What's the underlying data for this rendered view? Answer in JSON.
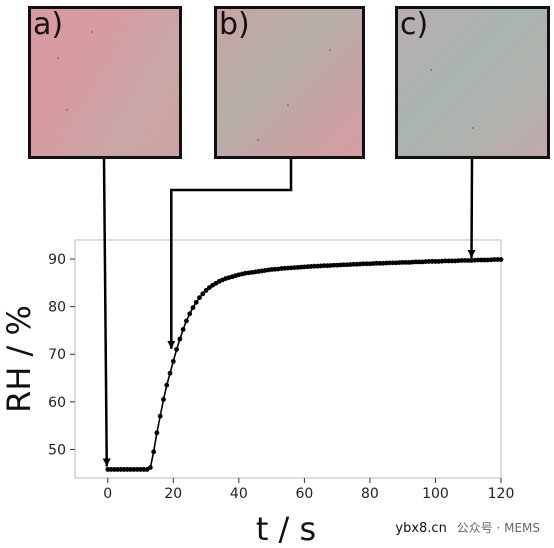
{
  "panels": [
    {
      "label": "a)"
    },
    {
      "label": "b)"
    },
    {
      "label": "c)"
    }
  ],
  "chart_data": {
    "type": "line",
    "title": "",
    "xlabel": "t / s",
    "ylabel": "RH / %",
    "xlim": [
      -10,
      120
    ],
    "ylim": [
      44,
      94
    ],
    "xticks": [
      0,
      20,
      40,
      60,
      80,
      100,
      120
    ],
    "yticks": [
      50,
      60,
      70,
      80,
      90
    ],
    "grid": false,
    "series": [
      {
        "color": "#000000",
        "x": [
          0,
          1,
          2,
          3,
          4,
          5,
          6,
          7,
          8,
          9,
          10,
          11,
          12,
          13,
          14,
          15,
          16,
          17,
          18,
          19,
          20,
          21,
          22,
          23,
          24,
          25,
          26,
          27,
          28,
          29,
          30,
          31,
          32,
          33,
          34,
          35,
          36,
          37,
          38,
          39,
          40,
          41,
          42,
          43,
          44,
          45,
          46,
          47,
          48,
          49,
          50,
          51,
          52,
          53,
          54,
          55,
          56,
          57,
          58,
          59,
          60,
          61,
          62,
          63,
          64,
          65,
          66,
          67,
          68,
          69,
          70,
          71,
          72,
          73,
          74,
          75,
          76,
          77,
          78,
          79,
          80,
          81,
          82,
          83,
          84,
          85,
          86,
          87,
          88,
          89,
          90,
          91,
          92,
          93,
          94,
          95,
          96,
          97,
          98,
          99,
          100,
          101,
          102,
          103,
          104,
          105,
          106,
          107,
          108,
          109,
          110,
          111,
          112,
          113,
          114,
          115,
          116,
          117,
          118,
          119,
          120
        ],
        "y": [
          45.8,
          45.8,
          45.8,
          45.8,
          45.8,
          45.8,
          45.8,
          45.8,
          45.8,
          45.8,
          45.8,
          45.8,
          45.8,
          46.2,
          49.5,
          53.5,
          57.0,
          60.5,
          63.5,
          66.0,
          68.5,
          71.0,
          73.2,
          75.2,
          77.0,
          78.5,
          79.8,
          80.9,
          81.9,
          82.7,
          83.4,
          84.0,
          84.5,
          84.9,
          85.3,
          85.6,
          85.9,
          86.1,
          86.3,
          86.5,
          86.7,
          86.85,
          87.0,
          87.1,
          87.2,
          87.3,
          87.4,
          87.5,
          87.6,
          87.7,
          87.8,
          87.85,
          87.9,
          88.0,
          88.05,
          88.1,
          88.15,
          88.2,
          88.25,
          88.3,
          88.35,
          88.4,
          88.45,
          88.5,
          88.5,
          88.55,
          88.6,
          88.6,
          88.65,
          88.7,
          88.7,
          88.75,
          88.8,
          88.8,
          88.85,
          88.9,
          88.9,
          88.95,
          89.0,
          89.0,
          89.0,
          89.05,
          89.1,
          89.1,
          89.1,
          89.15,
          89.2,
          89.2,
          89.2,
          89.25,
          89.3,
          89.3,
          89.3,
          89.35,
          89.4,
          89.4,
          89.4,
          89.45,
          89.5,
          89.5,
          89.5,
          89.5,
          89.55,
          89.6,
          89.6,
          89.6,
          89.6,
          89.65,
          89.7,
          89.7,
          89.7,
          89.7,
          89.75,
          89.8,
          89.8,
          89.8,
          89.8,
          89.85,
          89.9,
          89.9,
          89.9
        ]
      }
    ],
    "arrows": [
      {
        "from_panel": "a)",
        "to": [
          0,
          45.8
        ]
      },
      {
        "from_panel": "b)",
        "to": [
          20,
          70.5
        ]
      },
      {
        "from_panel": "c)",
        "to": [
          111,
          89.6
        ]
      }
    ]
  },
  "watermark": {
    "domain": "ybx8.cn",
    "text": "公众号 · MEMS"
  }
}
